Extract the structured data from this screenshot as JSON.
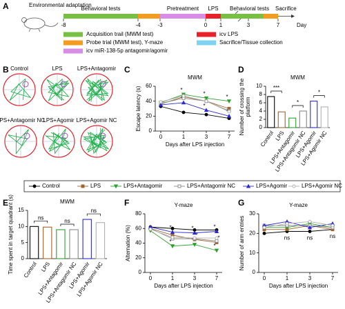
{
  "panel_labels": [
    "A",
    "B",
    "C",
    "D",
    "E",
    "F",
    "G"
  ],
  "timeline": {
    "label": "Environmental adaptation",
    "ticks": [
      -8,
      -4,
      -3,
      0,
      1,
      3,
      7
    ],
    "unit": "Day",
    "phases": [
      {
        "label": "Behavioral tests",
        "start": -8,
        "end": -4
      },
      {
        "label": "Pretreatment",
        "start": -3,
        "end": 0
      },
      {
        "label": "LPS",
        "start": 0,
        "end": 1
      },
      {
        "label": "Behavioral tests",
        "start": 1,
        "end": 7
      },
      {
        "label": "Sacrifice",
        "start": 7,
        "end": 7
      }
    ],
    "segments": [
      {
        "start": -8,
        "end": -4,
        "color": "#78c043"
      },
      {
        "start": -4,
        "end": -3,
        "color": "#f39c1f"
      },
      {
        "start": -3,
        "end": 0,
        "color": "#d98ee6"
      },
      {
        "start": 0,
        "end": 1,
        "color": "#e8222a"
      },
      {
        "start": 1,
        "end": 5,
        "color": "#78c043"
      },
      {
        "start": 5,
        "end": 7,
        "color": "#f39c1f"
      }
    ],
    "legend": [
      {
        "label": "Acquisition trail (MWM test)",
        "color": "#78c043"
      },
      {
        "label": "Probe trial (MWM test), Y-maze",
        "color": "#f39c1f"
      },
      {
        "label": "icv miR-138-5p antagomir/agomir",
        "color": "#d98ee6"
      },
      {
        "label": "icv LPS",
        "color": "#e8222a"
      },
      {
        "label": "Sacrifice/Tissue collection",
        "color": "#7fd3f0"
      }
    ]
  },
  "maze": {
    "groups": [
      "Control",
      "LPS",
      "LPS+Antagomir",
      "LPS+Antagomir NC",
      "LPS+Agomir",
      "LPS+Agomir NC"
    ]
  },
  "chart_data": [
    {
      "type": "line",
      "title": "MWM",
      "xlabel": "Days after LPS injection",
      "ylabel": "Escape latency (s)",
      "categories": [
        "0",
        "1",
        "3",
        "7"
      ],
      "ylim": [
        0,
        60
      ],
      "yticks": [
        0,
        20,
        40,
        60
      ],
      "series": [
        {
          "name": "Control",
          "color": "#000000",
          "marker": "circle",
          "filled": true,
          "values": [
            33,
            25,
            22,
            17
          ]
        },
        {
          "name": "LPS",
          "color": "#a0632a",
          "marker": "square",
          "filled": true,
          "values": [
            36,
            46,
            40,
            30
          ]
        },
        {
          "name": "LPS+Antagomir",
          "color": "#2ca02c",
          "marker": "triangle-down",
          "filled": true,
          "values": [
            38,
            49,
            44,
            40
          ],
          "significance": [
            null,
            "*",
            "*",
            "*"
          ]
        },
        {
          "name": "LPS+Antagomir NC",
          "color": "#888888",
          "marker": "square",
          "filled": false,
          "values": [
            37,
            44,
            40,
            27
          ]
        },
        {
          "name": "LPS+Agomir",
          "color": "#2b2bd6",
          "marker": "triangle-up",
          "filled": true,
          "values": [
            35,
            38,
            28,
            20
          ],
          "significance": [
            null,
            "*",
            "*",
            "*"
          ]
        },
        {
          "name": "LPS+Agomir NC",
          "color": "#b0b0b0",
          "marker": "circle",
          "filled": false,
          "values": [
            39,
            47,
            40,
            26
          ]
        }
      ]
    },
    {
      "type": "bar",
      "title": "MWM",
      "ylabel": [
        "Number of crossing the",
        "platform"
      ],
      "categories": [
        "Control",
        "LPS",
        "LPS+Antagomir",
        "LPS+Antagomir NC",
        "LPS+Agomir",
        "LPS+Agomir NC"
      ],
      "values": [
        7.5,
        3.8,
        2.3,
        4.0,
        6.4,
        5.0
      ],
      "colors": [
        "#000000",
        "#a0632a",
        "#2ca02c",
        "#888888",
        "#2b2bd6",
        "#b0b0b0"
      ],
      "ylim": [
        0,
        10
      ],
      "yticks": [
        0,
        2,
        4,
        6,
        8,
        10
      ],
      "comparisons": [
        {
          "groups": [
            0,
            1
          ],
          "label": "***"
        },
        {
          "groups": [
            2,
            3
          ],
          "label": "*"
        },
        {
          "groups": [
            4,
            5
          ],
          "label": "*"
        }
      ]
    },
    {
      "type": "bar",
      "title": "MWM",
      "ylabel": "Time spent in target quadrant (s)",
      "categories": [
        "Control",
        "LPS",
        "LPS+Antagomir",
        "LPS+Antagomir NC",
        "LPS+Agomir",
        "LPS+Agomir NC"
      ],
      "values": [
        10,
        9.8,
        9,
        9,
        12.2,
        11.2
      ],
      "colors": [
        "#000000",
        "#a0632a",
        "#2ca02c",
        "#888888",
        "#2b2bd6",
        "#b0b0b0"
      ],
      "ylim": [
        0,
        15
      ],
      "yticks": [
        0,
        5,
        10,
        15
      ],
      "comparisons": [
        {
          "groups": [
            0,
            1
          ],
          "label": "ns"
        },
        {
          "groups": [
            2,
            3
          ],
          "label": "ns"
        },
        {
          "groups": [
            4,
            5
          ],
          "label": "ns"
        }
      ]
    },
    {
      "type": "line",
      "title": "Y-maze",
      "xlabel": "Days after LPS injection",
      "ylabel": "Alternation (%)",
      "categories": [
        "0",
        "1",
        "3",
        "7"
      ],
      "ylim": [
        0,
        80
      ],
      "yticks": [
        0,
        20,
        40,
        60,
        80
      ],
      "series": [
        {
          "name": "Control",
          "color": "#000000",
          "marker": "circle",
          "filled": true,
          "values": [
            62,
            60,
            58,
            58
          ]
        },
        {
          "name": "LPS",
          "color": "#a0632a",
          "marker": "square",
          "filled": true,
          "values": [
            60,
            51,
            45,
            41
          ],
          "significance": [
            null,
            null,
            "*",
            "*"
          ]
        },
        {
          "name": "LPS+Antagomir",
          "color": "#2ca02c",
          "marker": "triangle-down",
          "filled": true,
          "values": [
            57,
            36,
            38,
            30
          ],
          "significance": [
            null,
            "*",
            "*",
            "*"
          ]
        },
        {
          "name": "LPS+Antagomir NC",
          "color": "#888888",
          "marker": "square",
          "filled": false,
          "values": [
            60,
            46,
            46,
            43
          ]
        },
        {
          "name": "LPS+Agomir",
          "color": "#2b2bd6",
          "marker": "triangle-up",
          "filled": true,
          "values": [
            62,
            55,
            54,
            56
          ],
          "significance": [
            null,
            "*",
            "*",
            "*"
          ]
        },
        {
          "name": "LPS+Agomir NC",
          "color": "#b0b0b0",
          "marker": "circle",
          "filled": false,
          "values": [
            59,
            48,
            47,
            47
          ]
        }
      ]
    },
    {
      "type": "line",
      "title": "Y-maze",
      "xlabel": "Days after LPS injection",
      "ylabel": "Number of arm entries",
      "categories": [
        "0",
        "1",
        "3",
        "7"
      ],
      "ylim": [
        0,
        30
      ],
      "yticks": [
        0,
        10,
        20,
        30
      ],
      "significance": [
        null,
        "ns",
        "ns",
        "ns"
      ],
      "series": [
        {
          "name": "Control",
          "color": "#000000",
          "marker": "circle",
          "filled": true,
          "values": [
            20,
            21,
            21,
            22
          ]
        },
        {
          "name": "LPS",
          "color": "#a0632a",
          "marker": "square",
          "filled": true,
          "values": [
            22,
            22,
            24,
            22
          ]
        },
        {
          "name": "LPS+Antagomir",
          "color": "#2ca02c",
          "marker": "triangle-down",
          "filled": true,
          "values": [
            23,
            23,
            25,
            23
          ]
        },
        {
          "name": "LPS+Antagomir NC",
          "color": "#888888",
          "marker": "square",
          "filled": false,
          "values": [
            24,
            24,
            24,
            23
          ]
        },
        {
          "name": "LPS+Agomir",
          "color": "#2b2bd6",
          "marker": "triangle-up",
          "filled": true,
          "values": [
            24,
            26,
            23,
            25
          ]
        },
        {
          "name": "LPS+Agomir NC",
          "color": "#b0b0b0",
          "marker": "circle",
          "filled": false,
          "values": [
            23,
            25,
            26,
            24
          ]
        }
      ]
    }
  ]
}
